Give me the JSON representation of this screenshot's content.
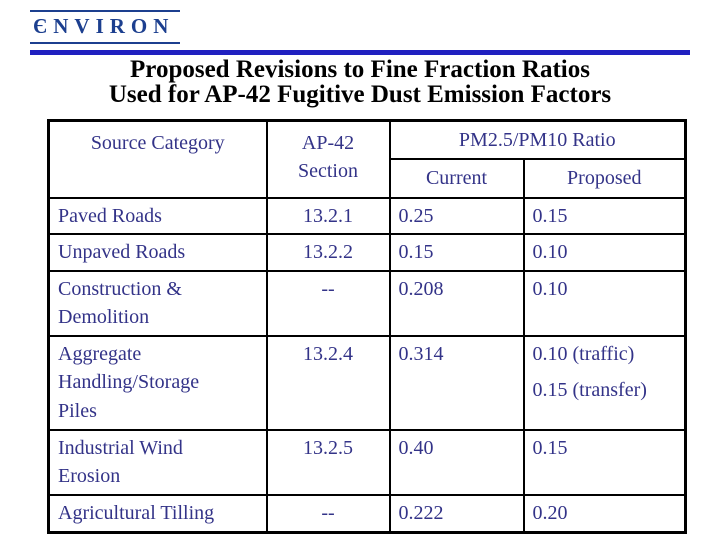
{
  "logo": {
    "text": "ЄNVIRON"
  },
  "title": {
    "line1": "Proposed Revisions to Fine Fraction Ratios",
    "line2": "Used for AP-42 Fugitive Dust Emission Factors"
  },
  "table": {
    "headers": {
      "source": "Source Category",
      "ap42_line1": "AP-42",
      "ap42_line2": "Section",
      "ratio_group": "PM2.5/PM10 Ratio",
      "current": "Current",
      "proposed": "Proposed"
    },
    "rows": [
      {
        "category": "Paved Roads",
        "section": "13.2.1",
        "current": "0.25",
        "proposed": "0.15"
      },
      {
        "category": "Unpaved Roads",
        "section": "13.2.2",
        "current": "0.15",
        "proposed": "0.10"
      },
      {
        "category": [
          "Construction &",
          "Demolition"
        ],
        "section": "--",
        "current": "0.208",
        "proposed": "0.10"
      },
      {
        "category": [
          "Aggregate",
          "Handling/Storage",
          "Piles"
        ],
        "section": "13.2.4",
        "current": "0.314",
        "proposed": [
          "0.10 (traffic)",
          "0.15 (transfer)"
        ]
      },
      {
        "category": [
          "Industrial Wind",
          "Erosion"
        ],
        "section": "13.2.5",
        "current": "0.40",
        "proposed": "0.15"
      },
      {
        "category": "Agricultural Tilling",
        "section": "--",
        "current": "0.222",
        "proposed": "0.20"
      }
    ]
  },
  "colors": {
    "rule_blue": "#2020c0",
    "logo_navy": "#1c3f8f",
    "table_navy": "#333388",
    "title_black": "#000000",
    "border_black": "#000000",
    "background": "#ffffff"
  }
}
